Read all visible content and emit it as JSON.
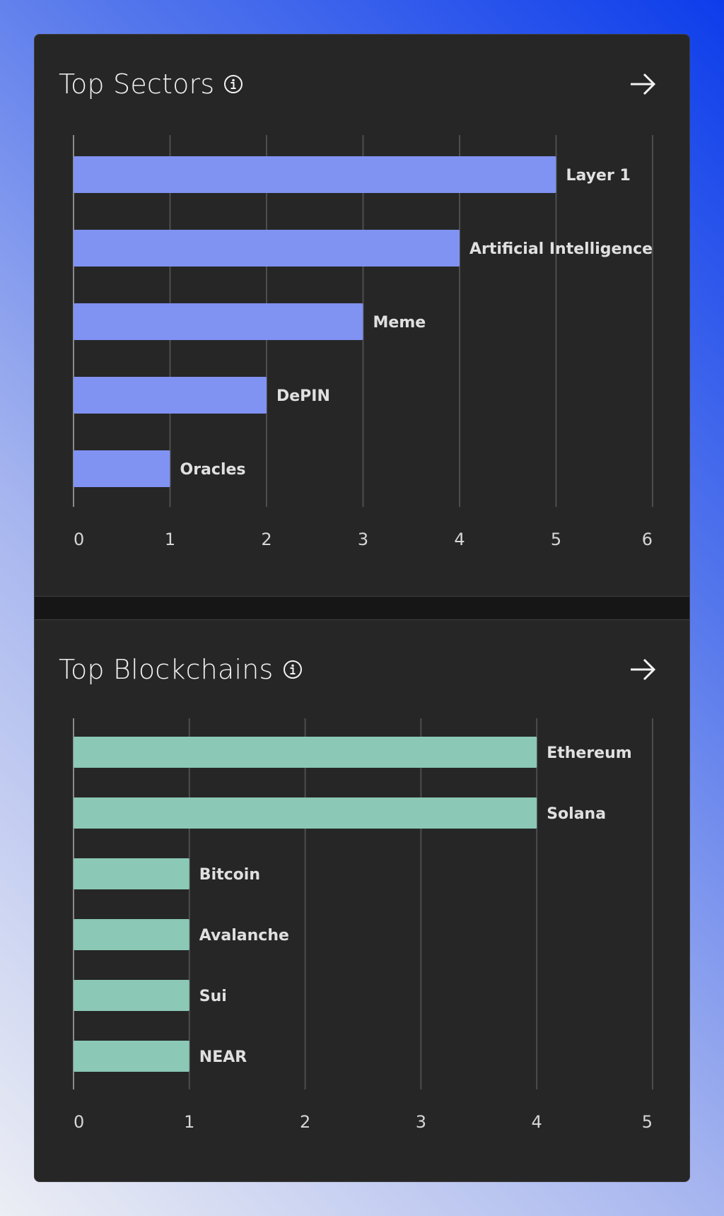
{
  "sectors": {
    "title": "Top Sectors",
    "icons": {
      "info": "info-circle-icon",
      "open": "arrow-right-icon"
    },
    "chart_data": {
      "type": "bar",
      "orientation": "horizontal",
      "categories": [
        "Layer 1",
        "Artificial Intelligence",
        "Meme",
        "DePIN",
        "Oracles"
      ],
      "values": [
        5,
        4,
        3,
        2,
        1
      ],
      "xlim": [
        0,
        6
      ],
      "xticks": [
        "0",
        "1",
        "2",
        "3",
        "4",
        "5",
        "6"
      ],
      "grid": true,
      "color": "#8092f2",
      "label_placement": "end-of-bar"
    }
  },
  "blockchains": {
    "title": "Top Blockchains",
    "icons": {
      "info": "info-circle-icon",
      "open": "arrow-right-icon"
    },
    "chart_data": {
      "type": "bar",
      "orientation": "horizontal",
      "categories": [
        "Ethereum",
        "Solana",
        "Bitcoin",
        "Avalanche",
        "Sui",
        "NEAR"
      ],
      "values": [
        4,
        4,
        1,
        1,
        1,
        1
      ],
      "xlim": [
        0,
        5
      ],
      "xticks": [
        "0",
        "1",
        "2",
        "3",
        "4",
        "5"
      ],
      "grid": true,
      "color": "#8bc8b6",
      "label_placement": "end-of-bar"
    }
  },
  "theme": {
    "card_bg": "#262626",
    "divider_bg": "#161616",
    "text": "#f2f2f2",
    "label_text": "#e0e0e0",
    "grid": "#4d4d4d"
  }
}
